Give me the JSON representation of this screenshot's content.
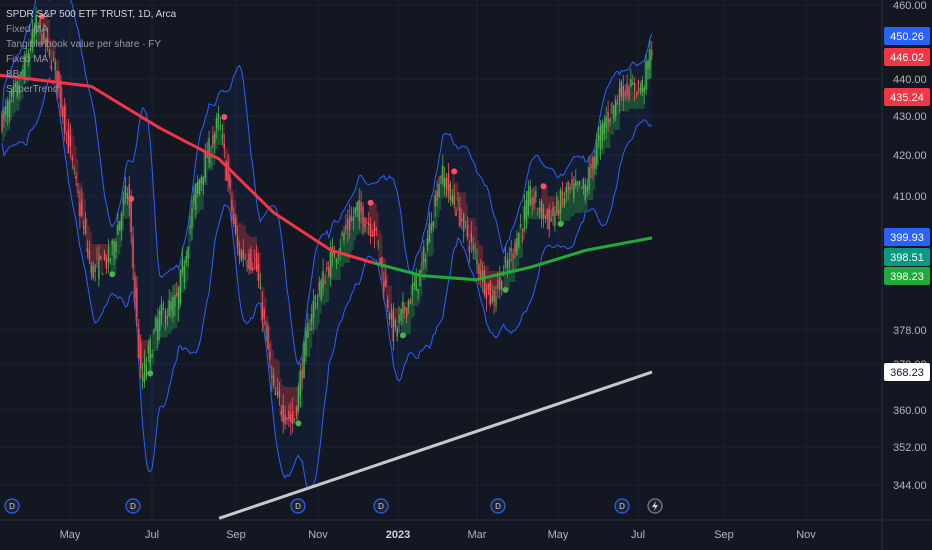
{
  "legend": {
    "title": "SPDR S&P 500 ETF TRUST, 1D, Arca",
    "indicators": [
      "Fixed MA",
      "Tangible book value per share · FY",
      "Fixed MA",
      "BB",
      "SuperTrend"
    ]
  },
  "chart_data": {
    "type": "candlestick",
    "symbol": "SPDR S&P 500 ETF TRUST",
    "interval": "1D",
    "exchange": "Arca",
    "y_ticks": [
      460,
      440,
      430,
      420,
      410,
      378,
      370,
      360,
      352,
      344
    ],
    "y_tick_labels": [
      "460.00",
      "440.00",
      "430.00",
      "420.00",
      "410.00",
      "378.00",
      "370.00",
      "360.00",
      "352.00",
      "344.00"
    ],
    "x_ticks": [
      "May",
      "Jul",
      "Sep",
      "Nov",
      "2023",
      "Mar",
      "May",
      "Jul",
      "Sep",
      "Nov"
    ],
    "price_tags": [
      {
        "value": "450.26",
        "color": "#2962ff",
        "text_color": "#ffffff"
      },
      {
        "value": "446.02",
        "color": "#f23645",
        "text_color": "#ffffff"
      },
      {
        "value": "435.24",
        "color": "#f23645",
        "text_color": "#ffffff"
      },
      {
        "value": "399.93",
        "color": "#2962ff",
        "text_color": "#ffffff"
      },
      {
        "value": "398.51",
        "color": "#089981",
        "text_color": "#ffffff"
      },
      {
        "value": "398.23",
        "color": "#22ab3b",
        "text_color": "#ffffff"
      },
      {
        "value": "368.23",
        "color": "#ffffff",
        "text_color": "#131722"
      }
    ],
    "events": [
      "D",
      "D",
      "D",
      "D",
      "D",
      "D",
      "D",
      "D"
    ],
    "series": [
      {
        "name": "Price (approx. weekly closes)",
        "points": [
          [
            "2022-03-01",
            428
          ],
          [
            "2022-03-15",
            438
          ],
          [
            "2022-03-29",
            455
          ],
          [
            "2022-04-12",
            443
          ],
          [
            "2022-04-26",
            416
          ],
          [
            "2022-05-10",
            392
          ],
          [
            "2022-05-24",
            395
          ],
          [
            "2022-06-07",
            412
          ],
          [
            "2022-06-17",
            366
          ],
          [
            "2022-07-01",
            381
          ],
          [
            "2022-07-15",
            385
          ],
          [
            "2022-07-29",
            411
          ],
          [
            "2022-08-16",
            429
          ],
          [
            "2022-08-30",
            397
          ],
          [
            "2022-09-13",
            394
          ],
          [
            "2022-09-27",
            363
          ],
          [
            "2022-10-12",
            357
          ],
          [
            "2022-10-26",
            383
          ],
          [
            "2022-11-10",
            395
          ],
          [
            "2022-11-30",
            407
          ],
          [
            "2022-12-13",
            402
          ],
          [
            "2022-12-28",
            377
          ],
          [
            "2023-01-18",
            392
          ],
          [
            "2023-02-02",
            416
          ],
          [
            "2023-02-16",
            406
          ],
          [
            "2023-03-01",
            395
          ],
          [
            "2023-03-13",
            385
          ],
          [
            "2023-03-28",
            396
          ],
          [
            "2023-04-12",
            410
          ],
          [
            "2023-04-26",
            404
          ],
          [
            "2023-05-10",
            411
          ],
          [
            "2023-05-24",
            412
          ],
          [
            "2023-06-07",
            428
          ],
          [
            "2023-06-21",
            437
          ],
          [
            "2023-07-07",
            438
          ],
          [
            "2023-07-14",
            449
          ]
        ]
      },
      {
        "name": "Fixed MA (red, above price)",
        "color": "#f23645",
        "points": [
          [
            "2022-03-01",
            441
          ],
          [
            "2022-05-10",
            438
          ],
          [
            "2022-07-01",
            427
          ],
          [
            "2022-08-16",
            419
          ],
          [
            "2022-09-27",
            406
          ],
          [
            "2022-11-10",
            397
          ],
          [
            "2022-12-13",
            394
          ]
        ]
      },
      {
        "name": "Fixed MA (green, below price)",
        "color": "#22ab3b",
        "points": [
          [
            "2022-12-13",
            394
          ],
          [
            "2023-01-18",
            391
          ],
          [
            "2023-03-01",
            390
          ],
          [
            "2023-04-12",
            393
          ],
          [
            "2023-05-24",
            397
          ],
          [
            "2023-07-14",
            400
          ]
        ]
      },
      {
        "name": "Tangible book value per share · FY",
        "color": "#c7c8cc",
        "points": [
          [
            "2022-08-16",
            337
          ],
          [
            "2023-07-14",
            368.23
          ]
        ]
      }
    ]
  }
}
